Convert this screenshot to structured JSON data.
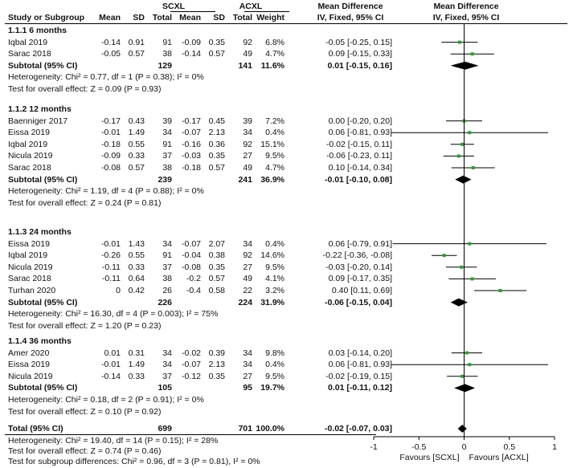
{
  "header": {
    "group1": "SCXL",
    "group2": "ACXL",
    "effect_col": "Mean Difference",
    "effect_sub": "IV, Fixed, 95% CI",
    "plot_col": "Mean Difference",
    "plot_sub": "IV, Fixed, 95% CI",
    "study": "Study or Subgroup",
    "mean1": "Mean",
    "sd1": "SD",
    "total1": "Total",
    "mean2": "Mean",
    "sd2": "SD",
    "total2": "Total",
    "weight": "Weight"
  },
  "chart_data": {
    "type": "forest",
    "x_axis": {
      "min": -1,
      "max": 1,
      "ticks": [
        "-1",
        "-0.5",
        "0",
        "0.5",
        "1"
      ],
      "tick_values": [
        -1,
        -0.5,
        0,
        0.5,
        1
      ]
    },
    "favours_left": "Favours [SCXL]",
    "favours_right": "Favours [ACXL]",
    "subgroups": [
      {
        "title": "1.1.1 6 months",
        "studies": [
          {
            "name": "Iqbal 2019",
            "m1": "-0.14",
            "sd1": "0.91",
            "n1": "91",
            "m2": "-0.09",
            "sd2": "0.35",
            "n2": "92",
            "weight": "6.8%",
            "ci_text": "-0.05 [-0.25, 0.15]",
            "est": -0.05,
            "lo": -0.25,
            "hi": 0.15
          },
          {
            "name": "Sarac 2018",
            "m1": "-0.05",
            "sd1": "0.57",
            "n1": "38",
            "m2": "-0.14",
            "sd2": "0.57",
            "n2": "49",
            "weight": "4.7%",
            "ci_text": "0.09 [-0.15, 0.33]",
            "est": 0.09,
            "lo": -0.15,
            "hi": 0.33
          }
        ],
        "subtotal": {
          "label": "Subtotal (95% CI)",
          "n1": "129",
          "n2": "141",
          "weight": "11.6%",
          "ci_text": "0.01 [-0.15, 0.16]",
          "est": 0.01,
          "lo": -0.15,
          "hi": 0.16
        },
        "heterogeneity": "Heterogeneity: Chi² = 0.77, df = 1 (P = 0.38); I² = 0%",
        "overall_test": "Test for overall effect: Z = 0.09 (P = 0.93)"
      },
      {
        "title": "1.1.2 12 months",
        "studies": [
          {
            "name": "Baenniger 2017",
            "m1": "-0.17",
            "sd1": "0.43",
            "n1": "39",
            "m2": "-0.17",
            "sd2": "0.45",
            "n2": "39",
            "weight": "7.2%",
            "ci_text": "0.00 [-0.20, 0.20]",
            "est": 0.0,
            "lo": -0.2,
            "hi": 0.2
          },
          {
            "name": "Eissa 2019",
            "m1": "-0.01",
            "sd1": "1.49",
            "n1": "34",
            "m2": "-0.07",
            "sd2": "2.13",
            "n2": "34",
            "weight": "0.4%",
            "ci_text": "0.06 [-0.81, 0.93]",
            "est": 0.06,
            "lo": -0.81,
            "hi": 0.93
          },
          {
            "name": "Iqbal 2019",
            "m1": "-0.18",
            "sd1": "0.55",
            "n1": "91",
            "m2": "-0.16",
            "sd2": "0.36",
            "n2": "92",
            "weight": "15.1%",
            "ci_text": "-0.02 [-0.15, 0.11]",
            "est": -0.02,
            "lo": -0.15,
            "hi": 0.11
          },
          {
            "name": "Nicula 2019",
            "m1": "-0.09",
            "sd1": "0.33",
            "n1": "37",
            "m2": "-0.03",
            "sd2": "0.35",
            "n2": "27",
            "weight": "9.5%",
            "ci_text": "-0.06 [-0.23, 0.11]",
            "est": -0.06,
            "lo": -0.23,
            "hi": 0.11
          },
          {
            "name": "Sarac 2018",
            "m1": "-0.08",
            "sd1": "0.57",
            "n1": "38",
            "m2": "-0.18",
            "sd2": "0.57",
            "n2": "49",
            "weight": "4.7%",
            "ci_text": "0.10 [-0.14, 0.34]",
            "est": 0.1,
            "lo": -0.14,
            "hi": 0.34
          }
        ],
        "subtotal": {
          "label": "Subtotal (95% CI)",
          "n1": "239",
          "n2": "241",
          "weight": "36.9%",
          "ci_text": "-0.01 [-0.10, 0.08]",
          "est": -0.01,
          "lo": -0.1,
          "hi": 0.08
        },
        "heterogeneity": "Heterogeneity: Chi² = 1.19, df = 4 (P = 0.88); I² = 0%",
        "overall_test": "Test for overall effect: Z = 0.24 (P = 0.81)"
      },
      {
        "title": "1.1.3 24 months",
        "studies": [
          {
            "name": "Eissa 2019",
            "m1": "-0.01",
            "sd1": "1.43",
            "n1": "34",
            "m2": "-0.07",
            "sd2": "2.07",
            "n2": "34",
            "weight": "0.4%",
            "ci_text": "0.06 [-0.79, 0.91]",
            "est": 0.06,
            "lo": -0.79,
            "hi": 0.91
          },
          {
            "name": "Iqbal 2019",
            "m1": "-0.26",
            "sd1": "0.55",
            "n1": "91",
            "m2": "-0.04",
            "sd2": "0.38",
            "n2": "92",
            "weight": "14.6%",
            "ci_text": "-0.22 [-0.36, -0.08]",
            "est": -0.22,
            "lo": -0.36,
            "hi": -0.08
          },
          {
            "name": "Nicula 2019",
            "m1": "-0.11",
            "sd1": "0.33",
            "n1": "37",
            "m2": "-0.08",
            "sd2": "0.35",
            "n2": "27",
            "weight": "9.5%",
            "ci_text": "-0.03 [-0.20, 0.14]",
            "est": -0.03,
            "lo": -0.2,
            "hi": 0.14
          },
          {
            "name": "Sarac 2018",
            "m1": "-0.11",
            "sd1": "0.64",
            "n1": "38",
            "m2": "-0.2",
            "sd2": "0.57",
            "n2": "49",
            "weight": "4.1%",
            "ci_text": "0.09 [-0.17, 0.35]",
            "est": 0.09,
            "lo": -0.17,
            "hi": 0.35
          },
          {
            "name": "Turhan 2020",
            "m1": "0",
            "sd1": "0.42",
            "n1": "26",
            "m2": "-0.4",
            "sd2": "0.58",
            "n2": "22",
            "weight": "3.2%",
            "ci_text": "0.40 [0.11, 0.69]",
            "est": 0.4,
            "lo": 0.11,
            "hi": 0.69
          }
        ],
        "subtotal": {
          "label": "Subtotal (95% CI)",
          "n1": "226",
          "n2": "224",
          "weight": "31.9%",
          "ci_text": "-0.06 [-0.15, 0.04]",
          "est": -0.06,
          "lo": -0.15,
          "hi": 0.04
        },
        "heterogeneity": "Heterogeneity: Chi² = 16.30, df = 4 (P = 0.003); I² = 75%",
        "overall_test": "Test for overall effect: Z = 1.20 (P = 0.23)"
      },
      {
        "title": "1.1.4 36 months",
        "studies": [
          {
            "name": "Amer 2020",
            "m1": "0.01",
            "sd1": "0.31",
            "n1": "34",
            "m2": "-0.02",
            "sd2": "0.39",
            "n2": "34",
            "weight": "9.8%",
            "ci_text": "0.03 [-0.14, 0.20]",
            "est": 0.03,
            "lo": -0.14,
            "hi": 0.2
          },
          {
            "name": "Eissa 2019",
            "m1": "-0.01",
            "sd1": "1.49",
            "n1": "34",
            "m2": "-0.07",
            "sd2": "2.13",
            "n2": "34",
            "weight": "0.4%",
            "ci_text": "0.06 [-0.81, 0.93]",
            "est": 0.06,
            "lo": -0.81,
            "hi": 0.93
          },
          {
            "name": "Nicula 2019",
            "m1": "-0.14",
            "sd1": "0.33",
            "n1": "37",
            "m2": "-0.12",
            "sd2": "0.35",
            "n2": "27",
            "weight": "9.5%",
            "ci_text": "-0.02 [-0.19, 0.15]",
            "est": -0.02,
            "lo": -0.19,
            "hi": 0.15
          }
        ],
        "subtotal": {
          "label": "Subtotal (95% CI)",
          "n1": "105",
          "n2": "95",
          "weight": "19.7%",
          "ci_text": "0.01 [-0.11, 0.12]",
          "est": 0.01,
          "lo": -0.11,
          "hi": 0.12
        },
        "heterogeneity": "Heterogeneity: Chi² = 0.18, df = 2 (P = 0.91); I² = 0%",
        "overall_test": "Test for overall effect: Z = 0.10 (P = 0.92)"
      }
    ],
    "total": {
      "label": "Total (95% CI)",
      "n1": "699",
      "n2": "701",
      "weight": "100.0%",
      "ci_text": "-0.02 [-0.07, 0.03]",
      "est": -0.02,
      "lo": -0.07,
      "hi": 0.03
    },
    "total_heterogeneity": "Heterogeneity: Chi² = 19.40, df = 14 (P = 0.15); I² = 28%",
    "total_overall_test": "Test for overall effect: Z = 0.74 (P = 0.46)",
    "subgroup_differences": "Test for subgroup differences: Chi² = 0.96, df = 3 (P = 0.81), I² = 0%",
    "colors": {
      "point": "#2e9e2e",
      "line": "#000000",
      "diamond": "#000000"
    }
  }
}
